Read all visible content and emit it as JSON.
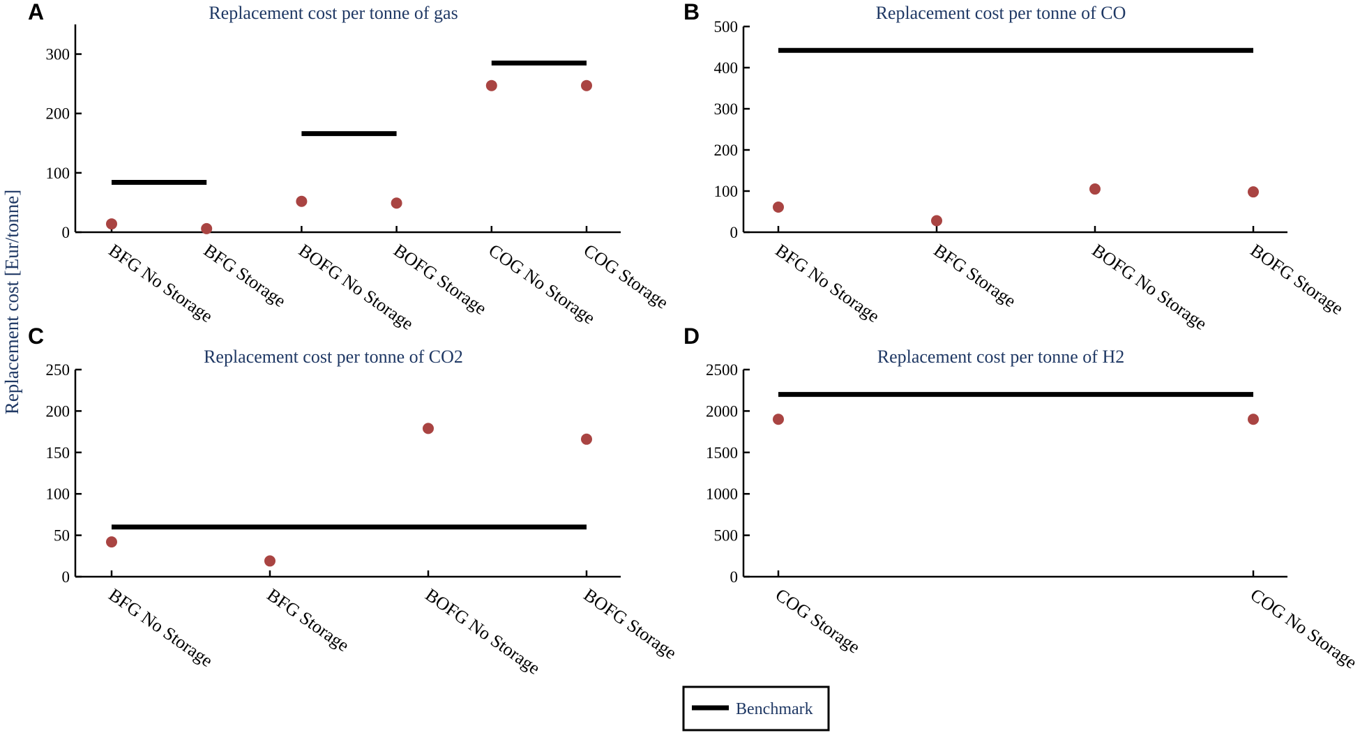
{
  "ylabel": "Replacement cost [Eur/tonne]",
  "legend": {
    "label": "Benchmark"
  },
  "colors": {
    "point": "#a94442",
    "title": "#1f3864",
    "benchmark": "#000000"
  },
  "chart_data": [
    {
      "panel": "A",
      "type": "scatter",
      "title": "Replacement cost per tonne of gas",
      "categories": [
        "BFG No Storage",
        "BFG Storage",
        "BOFG No Storage",
        "BOFG Storage",
        "COG No Storage",
        "COG Storage"
      ],
      "values": [
        14,
        6,
        52,
        49,
        247,
        247
      ],
      "benchmarks": [
        {
          "from": "BFG No Storage",
          "to": "BFG Storage",
          "value": 84
        },
        {
          "from": "BOFG No Storage",
          "to": "BOFG Storage",
          "value": 166
        },
        {
          "from": "COG No Storage",
          "to": "COG Storage",
          "value": 285
        }
      ],
      "yticks": [
        0,
        100,
        200,
        300
      ],
      "ylim": [
        0,
        350
      ]
    },
    {
      "panel": "B",
      "type": "scatter",
      "title": "Replacement cost per tonne of CO",
      "categories": [
        "BFG No Storage",
        "BFG Storage",
        "BOFG No Storage",
        "BOFG Storage"
      ],
      "values": [
        61,
        28,
        105,
        98
      ],
      "benchmarks": [
        {
          "from": "BFG No Storage",
          "to": "BOFG Storage",
          "value": 442
        }
      ],
      "yticks": [
        0,
        100,
        200,
        300,
        400,
        500
      ],
      "ylim": [
        0,
        500
      ]
    },
    {
      "panel": "C",
      "type": "scatter",
      "title": "Replacement cost per tonne of CO2",
      "categories": [
        "BFG No Storage",
        "BFG Storage",
        "BOFG No Storage",
        "BOFG Storage"
      ],
      "values": [
        42,
        19,
        179,
        166
      ],
      "benchmarks": [
        {
          "from": "BFG No Storage",
          "to": "BOFG Storage",
          "value": 60
        }
      ],
      "yticks": [
        0,
        50,
        100,
        150,
        200,
        250
      ],
      "ylim": [
        0,
        250
      ]
    },
    {
      "panel": "D",
      "type": "scatter",
      "title": "Replacement cost per tonne of H2",
      "categories": [
        "COG Storage",
        "COG No Storage"
      ],
      "values": [
        1900,
        1900
      ],
      "benchmarks": [
        {
          "from": "COG Storage",
          "to": "COG No Storage",
          "value": 2200
        }
      ],
      "yticks": [
        0,
        500,
        1000,
        1500,
        2000,
        2500
      ],
      "ylim": [
        0,
        2500
      ]
    }
  ]
}
